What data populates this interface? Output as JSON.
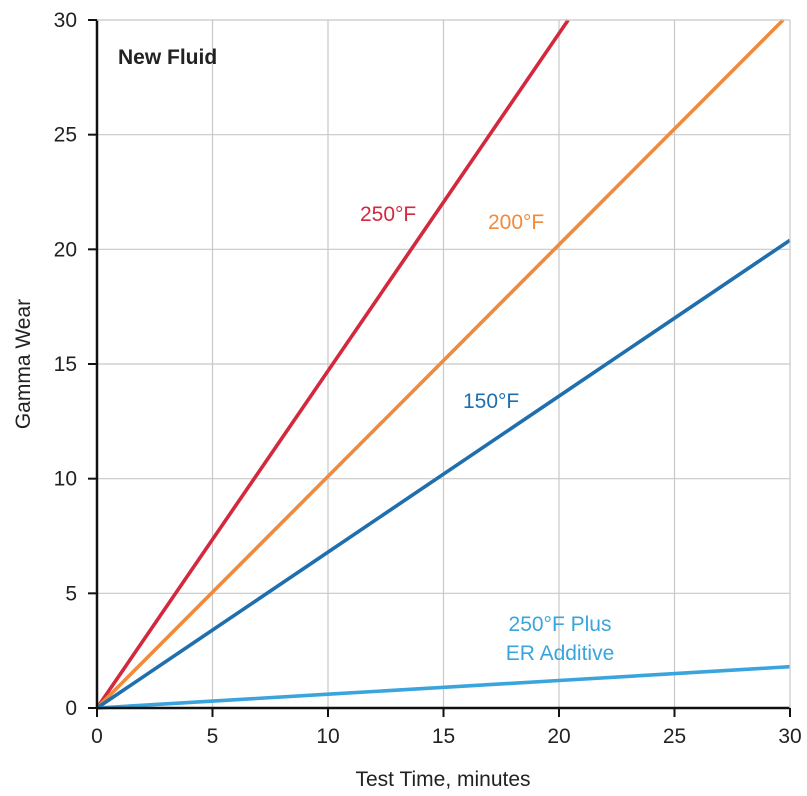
{
  "chart_data": {
    "type": "line",
    "title": "",
    "panel_label": "New Fluid",
    "xlabel": "Test Time, minutes",
    "ylabel": "Gamma Wear",
    "xlim": [
      0,
      30
    ],
    "ylim": [
      0,
      30
    ],
    "xticks": [
      0,
      5,
      10,
      15,
      20,
      25,
      30
    ],
    "yticks": [
      0,
      5,
      10,
      15,
      20,
      25,
      30
    ],
    "grid": true,
    "series": [
      {
        "name": "250°F",
        "color": "#d3293f",
        "x": [
          0,
          10,
          20.4
        ],
        "y": [
          0,
          14.7,
          30
        ]
      },
      {
        "name": "200°F",
        "color": "#f08a3c",
        "x": [
          0,
          10,
          20,
          29.7
        ],
        "y": [
          0,
          10.1,
          20.2,
          30
        ]
      },
      {
        "name": "150°F",
        "color": "#1f6fae",
        "x": [
          0,
          10,
          20,
          30
        ],
        "y": [
          0,
          6.8,
          13.6,
          20.4
        ]
      },
      {
        "name_lines": [
          "250°F Plus",
          "ER Additive"
        ],
        "color": "#3aa5dc",
        "x": [
          0,
          10,
          20,
          30
        ],
        "y": [
          0,
          0.6,
          1.2,
          1.8
        ]
      }
    ]
  }
}
